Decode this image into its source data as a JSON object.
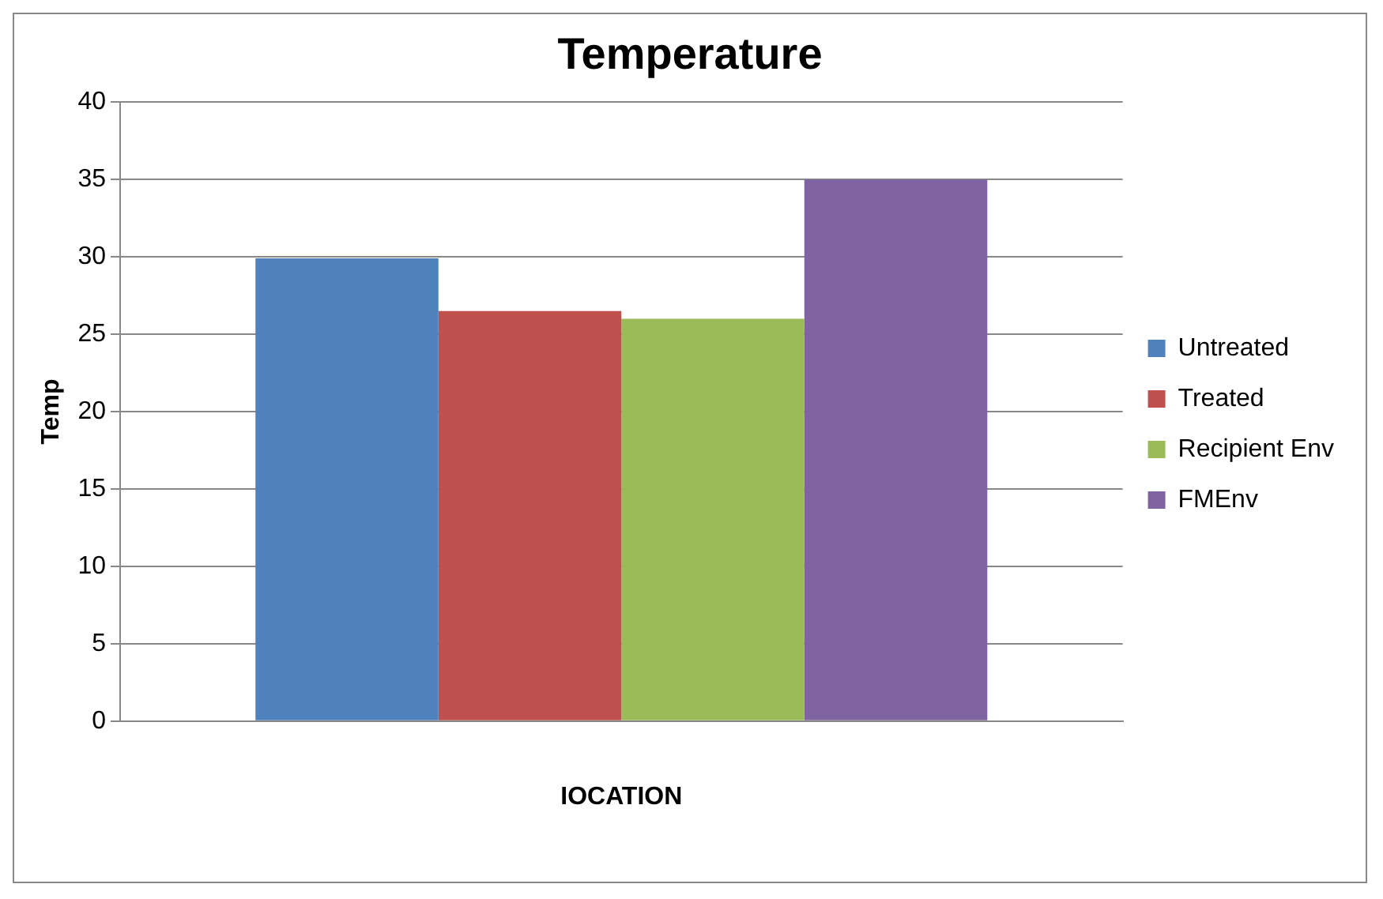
{
  "chart_data": {
    "type": "bar",
    "title": "Temperature",
    "xlabel": "IOCATION",
    "ylabel": "Temp",
    "categories": [
      null
    ],
    "series": [
      {
        "name": "Untreated",
        "color": "#4f81bd",
        "values": [
          29.9
        ]
      },
      {
        "name": "Treated",
        "color": "#c0504d",
        "values": [
          26.5
        ]
      },
      {
        "name": "Recipient Env",
        "color": "#9bbb59",
        "values": [
          26
        ]
      },
      {
        "name": "FMEnv",
        "color": "#8064a2",
        "values": [
          35
        ]
      }
    ],
    "ylim": [
      0,
      40
    ],
    "yticks": [
      0,
      5,
      10,
      15,
      20,
      25,
      30,
      35,
      40
    ],
    "grid": "y",
    "legend": "right"
  }
}
